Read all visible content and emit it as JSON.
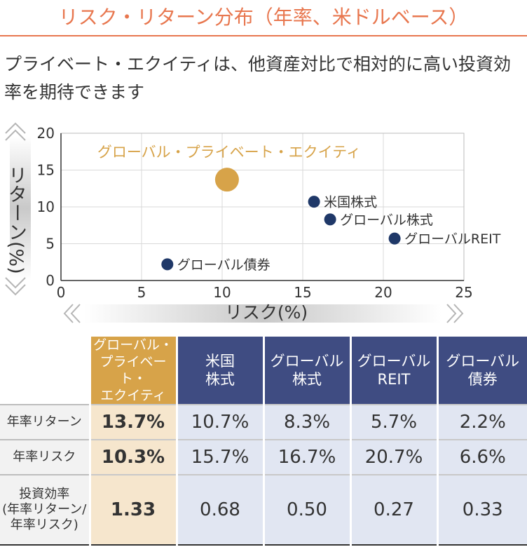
{
  "title": "リスク・リターン分布（年率、米ドルベース）",
  "lead": "プライベート・エクイティは、他資産対比で相対的に高い投資効率を期待できます",
  "colors": {
    "accent": "#e8774f",
    "pe": "#d7a349",
    "navy": "#1f3868",
    "header": "#3f4c82"
  },
  "chart_data": {
    "type": "scatter",
    "xlabel": "リスク(%)",
    "ylabel": "リターン(%)",
    "xlim": [
      0,
      25
    ],
    "ylim": [
      0,
      20
    ],
    "xticks": [
      0,
      5,
      10,
      15,
      20,
      25
    ],
    "yticks": [
      0,
      5,
      10,
      15,
      20
    ],
    "grid": true,
    "points": [
      {
        "label": "グローバル・プライベート・エクイティ",
        "x": 10.3,
        "y": 13.7,
        "color": "#d7a349",
        "highlight": true
      },
      {
        "label": "米国株式",
        "x": 15.7,
        "y": 10.7,
        "color": "#1f3868"
      },
      {
        "label": "グローバル株式",
        "x": 16.7,
        "y": 8.3,
        "color": "#1f3868"
      },
      {
        "label": "グローバルREIT",
        "x": 20.7,
        "y": 5.7,
        "color": "#1f3868"
      },
      {
        "label": "グローバル債券",
        "x": 6.6,
        "y": 2.2,
        "color": "#1f3868"
      }
    ]
  },
  "table": {
    "headers": [
      "グローバル・\nプライベート・\nエクイティ",
      "米国\n株式",
      "グローバル\n株式",
      "グローバル\nREIT",
      "グローバル\n債券"
    ],
    "rows": [
      {
        "label": "年率リターン",
        "values": [
          "13.7%",
          "10.7%",
          "8.3%",
          "5.7%",
          "2.2%"
        ]
      },
      {
        "label": "年率リスク",
        "values": [
          "10.3%",
          "15.7%",
          "16.7%",
          "20.7%",
          "6.6%"
        ]
      },
      {
        "label": "投資効率\n(年率リターン/\n年率リスク)",
        "values": [
          "1.33",
          "0.68",
          "0.50",
          "0.27",
          "0.33"
        ]
      }
    ]
  }
}
